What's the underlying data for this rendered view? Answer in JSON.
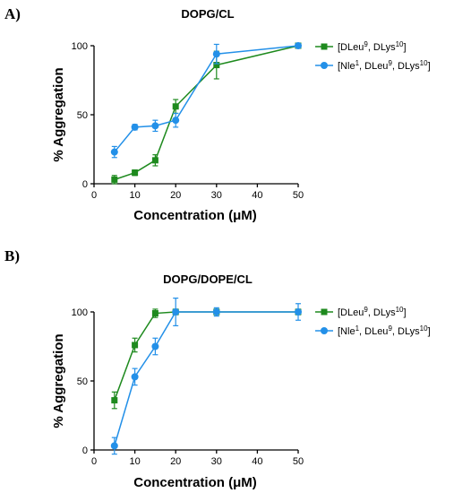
{
  "chart_data": [
    {
      "type": "line",
      "panel_label": "A)",
      "title": "DOPG/CL",
      "xlabel": "Concentration (μM)",
      "ylabel": "% Aggregation",
      "xlim": [
        0,
        50
      ],
      "ylim": [
        0,
        100
      ],
      "xticks": [
        "0",
        "10",
        "20",
        "30",
        "40",
        "50"
      ],
      "yticks": [
        "0",
        "50",
        "100"
      ],
      "grid": false,
      "legend_position": "right",
      "series": [
        {
          "name": "[DLeu9, DLys10]",
          "legend": {
            "pre": "[DLeu",
            "sup1": "9",
            "mid": ", DLys",
            "sup2": "10",
            "post": "]"
          },
          "color": "#1e8a1e",
          "marker": "square",
          "x": [
            5,
            10,
            15,
            20,
            30,
            50
          ],
          "y": [
            3,
            8,
            17,
            56,
            86,
            100
          ],
          "err": [
            3,
            2,
            4,
            5,
            10,
            0
          ]
        },
        {
          "name": "[Nle1, DLeu9, DLys10]",
          "legend": {
            "pre": "[Nle",
            "sup0": "1",
            "pre2": ", DLeu",
            "sup1": "9",
            "mid": ", DLys",
            "sup2": "10",
            "post": "]"
          },
          "color": "#2390e8",
          "marker": "circle",
          "x": [
            5,
            10,
            15,
            20,
            30,
            50
          ],
          "y": [
            23,
            41,
            42,
            46,
            94,
            100
          ],
          "err": [
            4,
            2,
            4,
            5,
            7,
            0
          ]
        }
      ]
    },
    {
      "type": "line",
      "panel_label": "B)",
      "title": "DOPG/DOPE/CL",
      "xlabel": "Concentration (μM)",
      "ylabel": "% Aggregation",
      "xlim": [
        0,
        50
      ],
      "ylim": [
        0,
        100
      ],
      "xticks": [
        "0",
        "10",
        "20",
        "30",
        "40",
        "50"
      ],
      "yticks": [
        "0",
        "50",
        "100"
      ],
      "grid": false,
      "legend_position": "right",
      "series": [
        {
          "name": "[DLeu9, DLys10]",
          "legend": {
            "pre": "[DLeu",
            "sup1": "9",
            "mid": ", DLys",
            "sup2": "10",
            "post": "]"
          },
          "color": "#1e8a1e",
          "marker": "square",
          "x": [
            5,
            10,
            15,
            20,
            30,
            50
          ],
          "y": [
            36,
            76,
            99,
            100,
            100,
            100
          ],
          "err": [
            6,
            5,
            3,
            2,
            2,
            2
          ]
        },
        {
          "name": "[Nle1, DLeu9, DLys10]",
          "legend": {
            "pre": "[Nle",
            "sup0": "1",
            "pre2": ", DLeu",
            "sup1": "9",
            "mid": ", DLys",
            "sup2": "10",
            "post": "]"
          },
          "color": "#2390e8",
          "marker": "circle",
          "x": [
            5,
            10,
            15,
            20,
            30,
            50
          ],
          "y": [
            3,
            53,
            75,
            100,
            100,
            100
          ],
          "err": [
            6,
            6,
            6,
            10,
            3,
            6
          ]
        }
      ]
    }
  ]
}
